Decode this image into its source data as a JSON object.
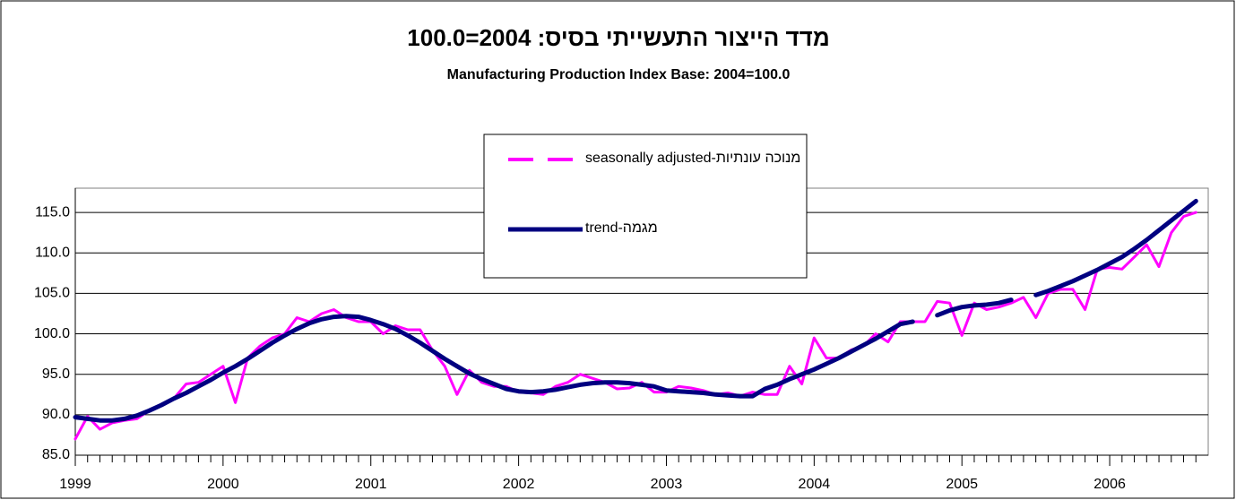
{
  "chart_data": {
    "type": "line",
    "title": "מדד הייצור התעשייתי בסיס: 2004=100.0",
    "subtitle": "Manufacturing Production Index Base: 2004=100.0",
    "categories": [
      "1999",
      null,
      null,
      null,
      null,
      null,
      null,
      null,
      null,
      null,
      null,
      null,
      "2000",
      null,
      null,
      null,
      null,
      null,
      null,
      null,
      null,
      null,
      null,
      null,
      "2001",
      null,
      null,
      null,
      null,
      null,
      null,
      null,
      null,
      null,
      null,
      null,
      "2002",
      null,
      null,
      null,
      null,
      null,
      null,
      null,
      null,
      null,
      null,
      null,
      "2003",
      null,
      null,
      null,
      null,
      null,
      null,
      null,
      null,
      null,
      null,
      null,
      "2004",
      null,
      null,
      null,
      null,
      null,
      null,
      null,
      null,
      null,
      null,
      null,
      "2005",
      null,
      null,
      null,
      null,
      null,
      null,
      null,
      null,
      null,
      null,
      null,
      "2006",
      null,
      null,
      null,
      null,
      null,
      null,
      null
    ],
    "series": [
      {
        "name": "מנוכה עונתיות-seasonally adjusted",
        "color": "#ff00ff",
        "values": [
          87.0,
          89.8,
          88.2,
          89.0,
          89.3,
          89.5,
          90.5,
          91.3,
          92.0,
          93.8,
          94.0,
          95.0,
          96.0,
          91.5,
          97.0,
          98.5,
          99.5,
          100.0,
          102.0,
          101.5,
          102.5,
          103.0,
          102.0,
          101.5,
          101.5,
          100.0,
          101.0,
          100.5,
          100.5,
          98.0,
          96.0,
          92.5,
          95.5,
          94.0,
          93.5,
          93.5,
          92.8,
          92.7,
          92.5,
          93.5,
          94.0,
          95.0,
          94.5,
          94.0,
          93.2,
          93.3,
          94.0,
          92.8,
          92.8,
          93.5,
          93.3,
          93.0,
          92.5,
          92.7,
          92.3,
          92.8,
          92.5,
          92.5,
          96.0,
          93.8,
          99.5,
          97.0,
          97.0,
          98.0,
          98.5,
          100.0,
          99.0,
          101.5,
          101.5,
          101.5,
          104.0,
          103.8,
          99.8,
          103.8,
          103.0,
          103.3,
          103.8,
          104.5,
          102.0,
          105.0,
          105.5,
          105.5,
          103.0,
          108.0,
          108.2,
          108.0,
          109.5,
          111.0,
          108.3,
          112.5,
          114.5,
          115.0
        ]
      },
      {
        "name": "מגמה-trend",
        "color": "#000080",
        "values": [
          89.7,
          89.5,
          89.3,
          89.3,
          89.5,
          89.9,
          90.5,
          91.2,
          92.0,
          92.7,
          93.5,
          94.3,
          95.2,
          96.0,
          96.9,
          97.9,
          98.9,
          99.8,
          100.6,
          101.3,
          101.8,
          102.1,
          102.2,
          102.1,
          101.7,
          101.2,
          100.6,
          99.8,
          98.9,
          97.9,
          96.9,
          96.0,
          95.1,
          94.4,
          93.8,
          93.2,
          92.9,
          92.8,
          92.9,
          93.1,
          93.4,
          93.7,
          93.9,
          94.0,
          94.0,
          93.9,
          93.7,
          93.5,
          93.0,
          92.9,
          92.8,
          92.7,
          92.5,
          92.4,
          92.3,
          92.3,
          93.2,
          93.7,
          94.4,
          95.0,
          95.6,
          96.3,
          97.0,
          97.8,
          98.6,
          99.4,
          100.3,
          101.2,
          101.5,
          null,
          102.3,
          102.9,
          103.3,
          103.5,
          103.6,
          103.8,
          104.2,
          null,
          104.8,
          105.3,
          105.9,
          106.5,
          107.2,
          107.9,
          108.7,
          109.5,
          110.5,
          111.6,
          112.8,
          114.0,
          115.2,
          116.4
        ]
      }
    ],
    "ylim": [
      85,
      118
    ],
    "yticks": [
      {
        "value": 85,
        "label": "85.0"
      },
      {
        "value": 90,
        "label": "90.0"
      },
      {
        "value": 95,
        "label": "95.0"
      },
      {
        "value": 100,
        "label": "100.0"
      },
      {
        "value": 105,
        "label": "105.0"
      },
      {
        "value": 110,
        "label": "110.0"
      },
      {
        "value": 115,
        "label": "115.0"
      }
    ],
    "grid": true
  }
}
